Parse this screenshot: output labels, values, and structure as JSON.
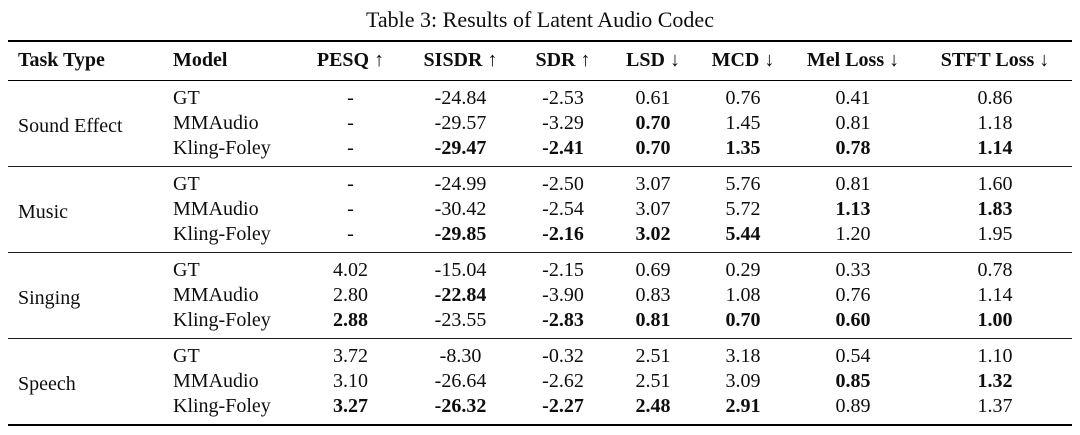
{
  "caption": "Table 3: Results of Latent Audio Codec",
  "table": {
    "columns": [
      {
        "label": "Task Type",
        "arrow": ""
      },
      {
        "label": "Model",
        "arrow": ""
      },
      {
        "label": "PESQ",
        "arrow": "↑"
      },
      {
        "label": "SISDR",
        "arrow": "↑"
      },
      {
        "label": "SDR",
        "arrow": "↑"
      },
      {
        "label": "LSD",
        "arrow": "↓"
      },
      {
        "label": "MCD",
        "arrow": "↓"
      },
      {
        "label": "Mel Loss",
        "arrow": "↓"
      },
      {
        "label": "STFT Loss",
        "arrow": "↓"
      }
    ],
    "groups": [
      {
        "task": "Sound Effect",
        "rows": [
          {
            "model": "GT",
            "values": [
              "-",
              "-24.84",
              "-2.53",
              "0.61",
              "0.76",
              "0.41",
              "0.86"
            ],
            "bold": []
          },
          {
            "model": "MMAudio",
            "values": [
              "-",
              "-29.57",
              "-3.29",
              "0.70",
              "1.45",
              "0.81",
              "1.18"
            ],
            "bold": [
              3
            ]
          },
          {
            "model": "Kling-Foley",
            "values": [
              "-",
              "-29.47",
              "-2.41",
              "0.70",
              "1.35",
              "0.78",
              "1.14"
            ],
            "bold": [
              1,
              2,
              3,
              4,
              5,
              6
            ]
          }
        ]
      },
      {
        "task": "Music",
        "rows": [
          {
            "model": "GT",
            "values": [
              "-",
              "-24.99",
              "-2.50",
              "3.07",
              "5.76",
              "0.81",
              "1.60"
            ],
            "bold": []
          },
          {
            "model": "MMAudio",
            "values": [
              "-",
              "-30.42",
              "-2.54",
              "3.07",
              "5.72",
              "1.13",
              "1.83"
            ],
            "bold": [
              5,
              6
            ]
          },
          {
            "model": "Kling-Foley",
            "values": [
              "-",
              "-29.85",
              "-2.16",
              "3.02",
              "5.44",
              "1.20",
              "1.95"
            ],
            "bold": [
              1,
              2,
              3,
              4
            ]
          }
        ]
      },
      {
        "task": "Singing",
        "rows": [
          {
            "model": "GT",
            "values": [
              "4.02",
              "-15.04",
              "-2.15",
              "0.69",
              "0.29",
              "0.33",
              "0.78"
            ],
            "bold": []
          },
          {
            "model": "MMAudio",
            "values": [
              "2.80",
              "-22.84",
              "-3.90",
              "0.83",
              "1.08",
              "0.76",
              "1.14"
            ],
            "bold": [
              1
            ]
          },
          {
            "model": "Kling-Foley",
            "values": [
              "2.88",
              "-23.55",
              "-2.83",
              "0.81",
              "0.70",
              "0.60",
              "1.00"
            ],
            "bold": [
              0,
              2,
              3,
              4,
              5,
              6
            ]
          }
        ]
      },
      {
        "task": "Speech",
        "rows": [
          {
            "model": "GT",
            "values": [
              "3.72",
              "-8.30",
              "-0.32",
              "2.51",
              "3.18",
              "0.54",
              "1.10"
            ],
            "bold": []
          },
          {
            "model": "MMAudio",
            "values": [
              "3.10",
              "-26.64",
              "-2.62",
              "2.51",
              "3.09",
              "0.85",
              "1.32"
            ],
            "bold": [
              5,
              6
            ]
          },
          {
            "model": "Kling-Foley",
            "values": [
              "3.27",
              "-26.32",
              "-2.27",
              "2.48",
              "2.91",
              "0.89",
              "1.37"
            ],
            "bold": [
              0,
              1,
              2,
              3,
              4
            ]
          }
        ]
      }
    ]
  }
}
